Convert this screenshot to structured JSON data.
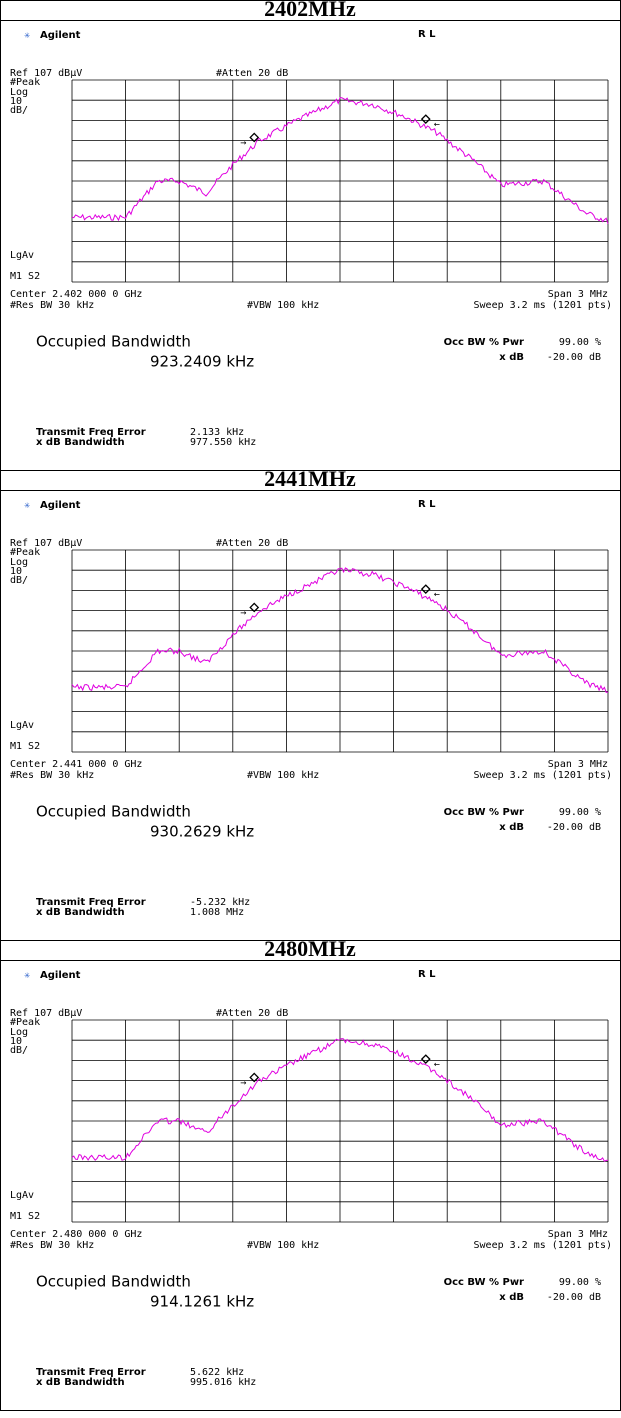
{
  "screen": {
    "brand": "Agilent",
    "mode": "R L",
    "ref": "Ref 107 dBµV",
    "atten": "#Atten 20 dB",
    "det": "#Peak",
    "log": "Log",
    "scale": "10",
    "unit": "dB/",
    "avg": "LgAv",
    "marker": "M1 S2",
    "span": "Span 3 MHz",
    "rbw": "#Res BW 30 kHz",
    "vbw": "#VBW 100 kHz",
    "sweep": "Sweep 3.2 ms (1201 pts)",
    "obw_title": "Occupied Bandwidth",
    "occ_label": "Occ BW % Pwr",
    "occ_value": "99.00 %",
    "xdb_label": "x dB",
    "xdb_value": "-20.00 dB",
    "tfe_label": "Transmit Freq Error",
    "xbw_label": "x dB Bandwidth"
  },
  "panels": [
    {
      "heading": "2402MHz",
      "center": "Center 2.402 000 0 GHz",
      "obw": "923.2409 kHz",
      "tfe": "2.133 kHz",
      "xbw": "977.550 kHz"
    },
    {
      "heading": "2441MHz",
      "center": "Center 2.441 000 0 GHz",
      "obw": "930.2629 kHz",
      "tfe": "-5.232 kHz",
      "xbw": "1.008 MHz"
    },
    {
      "heading": "2480MHz",
      "center": "Center 2.480 000 0 GHz",
      "obw": "914.1261 kHz",
      "tfe": "5.622 kHz",
      "xbw": "995.016 kHz"
    }
  ]
}
